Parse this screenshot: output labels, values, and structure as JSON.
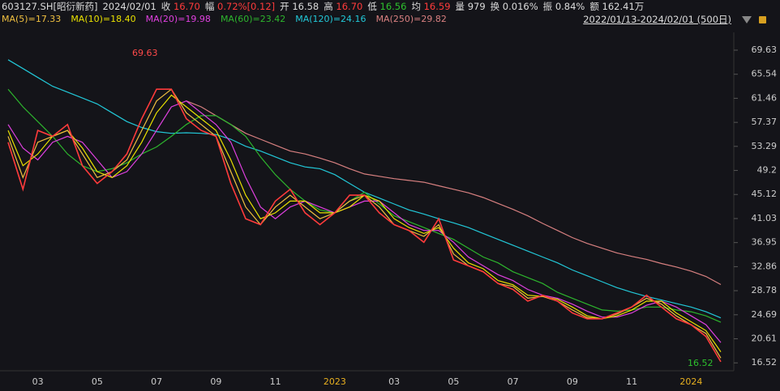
{
  "header": {
    "symbol": "603127.SH[昭衍新药]",
    "date": "2024/02/01",
    "items": [
      {
        "label": "收",
        "value": "16.70",
        "tone": "up"
      },
      {
        "label": "幅",
        "value": "0.72%[0.12]",
        "tone": "up"
      },
      {
        "label": "开",
        "value": "16.58",
        "tone": "flat"
      },
      {
        "label": "高",
        "value": "16.70",
        "tone": "up"
      },
      {
        "label": "低",
        "value": "16.56",
        "tone": "down"
      },
      {
        "label": "均",
        "value": "16.59",
        "tone": "up"
      },
      {
        "label": "量",
        "value": "979",
        "tone": "flat"
      },
      {
        "label": "换",
        "value": "0.016%",
        "tone": "flat"
      },
      {
        "label": "振",
        "value": "0.84%",
        "tone": "flat"
      },
      {
        "label": "额",
        "value": "162.41万",
        "tone": "flat"
      }
    ],
    "range": "2022/01/13-2024/02/01 (500日)"
  },
  "chart_data": {
    "type": "line",
    "categories": [
      null,
      null,
      "03",
      null,
      null,
      null,
      "05",
      null,
      null,
      null,
      "07",
      null,
      null,
      null,
      "09",
      null,
      null,
      null,
      "11",
      null,
      null,
      null,
      "2023",
      null,
      null,
      null,
      "03",
      null,
      null,
      null,
      "05",
      null,
      null,
      null,
      "07",
      null,
      null,
      null,
      "09",
      null,
      null,
      null,
      "11",
      null,
      null,
      null,
      "2024",
      null,
      null
    ],
    "series": [
      {
        "color": "#ff3b3b",
        "values": [
          54,
          46,
          56,
          55,
          57,
          50,
          47,
          49,
          52,
          58,
          63,
          63,
          58,
          56,
          55,
          47,
          41,
          40,
          44,
          46,
          42,
          40,
          42,
          45,
          45,
          42,
          40,
          39,
          37,
          41,
          34,
          33,
          32,
          30,
          29,
          27,
          28,
          27,
          25,
          24,
          24,
          25,
          26,
          28,
          26,
          24,
          23,
          21,
          16.7
        ]
      },
      {
        "name": "MA(5)=17.33",
        "color": "#f0c040",
        "values": [
          55,
          48,
          54,
          55,
          56,
          52,
          48,
          49,
          51,
          56,
          61,
          63,
          59,
          57,
          55,
          49,
          43,
          40,
          43,
          45,
          43,
          41,
          42,
          44,
          45,
          43,
          40,
          39,
          38,
          40,
          35,
          33,
          32,
          30,
          29.5,
          27.5,
          27.8,
          27,
          25.5,
          24.2,
          24,
          24.8,
          26,
          27.5,
          26.5,
          24.5,
          23,
          21.5,
          17.33
        ]
      },
      {
        "name": "MA(10)=18.40",
        "color": "#e8e000",
        "values": [
          56,
          50,
          52,
          55,
          56,
          53,
          49,
          48,
          50,
          54,
          59,
          62,
          60,
          58,
          56,
          51,
          45,
          41,
          42,
          44,
          44,
          42,
          42,
          43,
          45,
          44,
          41,
          39.5,
          38.5,
          39.5,
          36,
          33.5,
          32.5,
          30.5,
          29.8,
          28,
          27.8,
          27.3,
          26,
          24.5,
          24,
          24.5,
          25.5,
          27,
          27,
          25,
          23.5,
          22,
          18.4
        ]
      },
      {
        "name": "MA(20)=19.98",
        "color": "#e040e0",
        "values": [
          57,
          53,
          51,
          54,
          55,
          54,
          51,
          48,
          49,
          52,
          56,
          60,
          61,
          59,
          57,
          54,
          48,
          43,
          41,
          43,
          44,
          43,
          42,
          43,
          44,
          44,
          42,
          40,
          39,
          39,
          37,
          34.5,
          33,
          31.5,
          30.5,
          29,
          28,
          27.5,
          26.5,
          25.3,
          24.3,
          24.3,
          25,
          26.3,
          27,
          26,
          24.5,
          23,
          19.98
        ]
      },
      {
        "name": "MA(60)=23.42",
        "color": "#2db52d",
        "values": [
          63,
          60,
          57.5,
          55,
          52,
          50,
          49,
          49.5,
          50.5,
          52,
          53.2,
          55,
          57,
          58.5,
          58.5,
          57,
          55,
          51.5,
          48.5,
          46,
          44,
          42.5,
          42,
          44,
          45.5,
          43.5,
          41.5,
          40.5,
          39.5,
          38.5,
          37.5,
          36,
          34.5,
          33.5,
          32,
          31,
          30,
          28.5,
          27.5,
          26.5,
          25.5,
          25.3,
          25.5,
          26,
          26,
          25.5,
          25.2,
          24.5,
          23.42
        ]
      },
      {
        "name": "MA(120)=24.16",
        "color": "#22c8d8",
        "values": [
          68,
          66.5,
          65,
          63.5,
          62.5,
          61.5,
          60.5,
          59,
          57.5,
          56.5,
          55.8,
          55.5,
          55.6,
          55.5,
          55.3,
          54.5,
          53.3,
          52.5,
          51.5,
          50.5,
          49.8,
          49.5,
          48.5,
          47,
          45.5,
          44.5,
          43.5,
          42.5,
          41.8,
          41,
          40.3,
          39.5,
          38.5,
          37.5,
          36.5,
          35.5,
          34.5,
          33.5,
          32.3,
          31.3,
          30.3,
          29.3,
          28.5,
          27.8,
          27.2,
          26.6,
          26,
          25.2,
          24.16
        ]
      },
      {
        "name": "MA(250)=29.82",
        "color": "#d88080",
        "values": [
          null,
          null,
          null,
          null,
          null,
          null,
          null,
          null,
          null,
          null,
          null,
          null,
          61,
          60,
          58.5,
          57,
          55.5,
          54.5,
          53.5,
          52.5,
          52,
          51.3,
          50.5,
          49.5,
          48.6,
          48.2,
          47.8,
          47.5,
          47.2,
          46.6,
          46,
          45.4,
          44.6,
          43.6,
          42.6,
          41.5,
          40.2,
          39,
          37.8,
          36.8,
          36,
          35.2,
          34.6,
          34.1,
          33.4,
          32.8,
          32.1,
          31.2,
          29.82
        ]
      }
    ],
    "ylim": [
      15.59,
      70.59
    ],
    "yticks": [
      69.63,
      65.54,
      61.46,
      57.37,
      53.29,
      49.2,
      45.12,
      41.03,
      36.95,
      32.86,
      28.78,
      24.69,
      20.61,
      16.52
    ],
    "annotations": [
      "69.63",
      "16.52"
    ]
  }
}
